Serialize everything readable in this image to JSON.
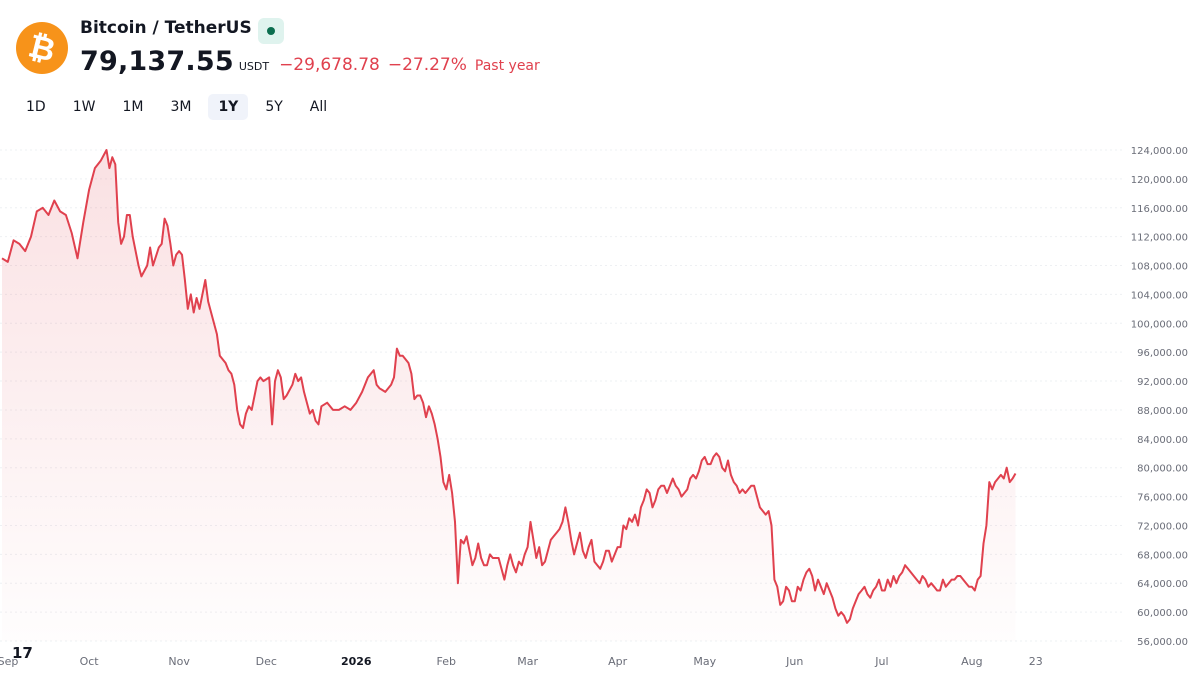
{
  "header": {
    "pair_title": "Bitcoin / TetherUS",
    "logo_glyph": "₿",
    "price": "79,137.55",
    "currency": "USDT",
    "change_abs": "−29,678.78",
    "change_pct": "−27.27%",
    "period_label": "Past year",
    "market_status": "open"
  },
  "ranges": [
    {
      "label": "1D",
      "active": false
    },
    {
      "label": "1W",
      "active": false
    },
    {
      "label": "1M",
      "active": false
    },
    {
      "label": "3M",
      "active": false
    },
    {
      "label": "1Y",
      "active": true
    },
    {
      "label": "5Y",
      "active": false
    },
    {
      "label": "All",
      "active": false
    }
  ],
  "branding": {
    "logo_text": "17"
  },
  "colors": {
    "line": "#e0414e",
    "logo": "#f7931a",
    "status": "#0b6e4f"
  },
  "chart_data": {
    "type": "area",
    "ylim": [
      56000,
      124000
    ],
    "y_ticks": [
      56000,
      60000,
      64000,
      68000,
      72000,
      76000,
      80000,
      84000,
      88000,
      92000,
      96000,
      100000,
      104000,
      108000,
      112000,
      116000,
      120000,
      124000
    ],
    "y_tick_labels": [
      "56,000.00",
      "60,000.00",
      "64,000.00",
      "68,000.00",
      "72,000.00",
      "76,000.00",
      "80,000.00",
      "84,000.00",
      "88,000.00",
      "92,000.00",
      "96,000.00",
      "100,000.00",
      "104,000.00",
      "108,000.00",
      "112,000.00",
      "116,000.00",
      "120,000.00",
      "124,000.00"
    ],
    "x_labels": [
      {
        "label": "Sep",
        "x": 0,
        "bold": false
      },
      {
        "label": "Oct",
        "x": 30,
        "bold": false
      },
      {
        "label": "Nov",
        "x": 61,
        "bold": false
      },
      {
        "label": "Dec",
        "x": 91,
        "bold": false
      },
      {
        "label": "2026",
        "x": 122,
        "bold": true
      },
      {
        "label": "Feb",
        "x": 153,
        "bold": false
      },
      {
        "label": "Mar",
        "x": 181,
        "bold": false
      },
      {
        "label": "Apr",
        "x": 212,
        "bold": false
      },
      {
        "label": "May",
        "x": 242,
        "bold": false
      },
      {
        "label": "Jun",
        "x": 273,
        "bold": false
      },
      {
        "label": "Jul",
        "x": 303,
        "bold": false
      },
      {
        "label": "Aug",
        "x": 334,
        "bold": false
      },
      {
        "label": "23",
        "x": 356,
        "bold": false
      }
    ],
    "x_range": [
      0,
      385
    ],
    "points": [
      [
        0,
        109000
      ],
      [
        2,
        108500
      ],
      [
        4,
        111500
      ],
      [
        6,
        111000
      ],
      [
        8,
        110000
      ],
      [
        10,
        112000
      ],
      [
        12,
        115500
      ],
      [
        14,
        116000
      ],
      [
        16,
        115000
      ],
      [
        18,
        117000
      ],
      [
        20,
        115500
      ],
      [
        22,
        115000
      ],
      [
        24,
        112500
      ],
      [
        26,
        109000
      ],
      [
        28,
        114000
      ],
      [
        30,
        118500
      ],
      [
        32,
        121500
      ],
      [
        34,
        122500
      ],
      [
        36,
        124000
      ],
      [
        37,
        121500
      ],
      [
        38,
        123000
      ],
      [
        39,
        122000
      ],
      [
        40,
        114000
      ],
      [
        41,
        111000
      ],
      [
        42,
        112000
      ],
      [
        43,
        115000
      ],
      [
        44,
        115000
      ],
      [
        45,
        112000
      ],
      [
        47,
        108000
      ],
      [
        48,
        106500
      ],
      [
        50,
        108000
      ],
      [
        51,
        110500
      ],
      [
        52,
        108000
      ],
      [
        54,
        110500
      ],
      [
        55,
        111000
      ],
      [
        56,
        114500
      ],
      [
        57,
        113500
      ],
      [
        58,
        111000
      ],
      [
        59,
        108000
      ],
      [
        60,
        109500
      ],
      [
        61,
        110000
      ],
      [
        62,
        109500
      ],
      [
        63,
        106000
      ],
      [
        64,
        102000
      ],
      [
        65,
        104000
      ],
      [
        66,
        101500
      ],
      [
        67,
        103500
      ],
      [
        68,
        102000
      ],
      [
        70,
        106000
      ],
      [
        71,
        103000
      ],
      [
        72,
        101500
      ],
      [
        74,
        98500
      ],
      [
        75,
        95500
      ],
      [
        76,
        95000
      ],
      [
        77,
        94500
      ],
      [
        78,
        93500
      ],
      [
        79,
        93000
      ],
      [
        80,
        91500
      ],
      [
        81,
        88000
      ],
      [
        82,
        86000
      ],
      [
        83,
        85500
      ],
      [
        84,
        87500
      ],
      [
        85,
        88500
      ],
      [
        86,
        88000
      ],
      [
        87,
        90000
      ],
      [
        88,
        92000
      ],
      [
        89,
        92500
      ],
      [
        90,
        92000
      ],
      [
        92,
        92500
      ],
      [
        93,
        86000
      ],
      [
        94,
        92000
      ],
      [
        95,
        93500
      ],
      [
        96,
        92500
      ],
      [
        97,
        89500
      ],
      [
        98,
        90000
      ],
      [
        100,
        91500
      ],
      [
        101,
        93000
      ],
      [
        102,
        92000
      ],
      [
        103,
        92500
      ],
      [
        104,
        90500
      ],
      [
        105,
        89000
      ],
      [
        106,
        87500
      ],
      [
        107,
        88000
      ],
      [
        108,
        86500
      ],
      [
        109,
        86000
      ],
      [
        110,
        88500
      ],
      [
        112,
        89000
      ],
      [
        114,
        88000
      ],
      [
        116,
        88000
      ],
      [
        118,
        88500
      ],
      [
        120,
        88000
      ],
      [
        122,
        89000
      ],
      [
        124,
        90500
      ],
      [
        126,
        92500
      ],
      [
        128,
        93500
      ],
      [
        129,
        91500
      ],
      [
        130,
        91000
      ],
      [
        132,
        90500
      ],
      [
        134,
        91500
      ],
      [
        135,
        92500
      ],
      [
        136,
        96500
      ],
      [
        137,
        95500
      ],
      [
        138,
        95500
      ],
      [
        140,
        94500
      ],
      [
        141,
        93000
      ],
      [
        142,
        89500
      ],
      [
        143,
        90000
      ],
      [
        144,
        90000
      ],
      [
        145,
        89000
      ],
      [
        146,
        87000
      ],
      [
        147,
        88500
      ],
      [
        148,
        87500
      ],
      [
        149,
        86000
      ],
      [
        150,
        84000
      ],
      [
        151,
        81500
      ],
      [
        152,
        78000
      ],
      [
        153,
        77000
      ],
      [
        154,
        79000
      ],
      [
        155,
        76500
      ],
      [
        156,
        72500
      ],
      [
        157,
        64000
      ],
      [
        158,
        70000
      ],
      [
        159,
        69500
      ],
      [
        160,
        70500
      ],
      [
        161,
        68500
      ],
      [
        162,
        66500
      ],
      [
        163,
        67500
      ],
      [
        164,
        69500
      ],
      [
        165,
        67500
      ],
      [
        166,
        66500
      ],
      [
        167,
        66500
      ],
      [
        168,
        68000
      ],
      [
        169,
        67500
      ],
      [
        171,
        67500
      ],
      [
        172,
        66000
      ],
      [
        173,
        64500
      ],
      [
        174,
        66500
      ],
      [
        175,
        68000
      ],
      [
        176,
        66500
      ],
      [
        177,
        65500
      ],
      [
        178,
        67000
      ],
      [
        179,
        66500
      ],
      [
        180,
        68000
      ],
      [
        181,
        69000
      ],
      [
        182,
        72500
      ],
      [
        183,
        70000
      ],
      [
        184,
        67500
      ],
      [
        185,
        69000
      ],
      [
        186,
        66500
      ],
      [
        187,
        67000
      ],
      [
        188,
        68500
      ],
      [
        189,
        70000
      ],
      [
        190,
        70500
      ],
      [
        191,
        71000
      ],
      [
        192,
        71500
      ],
      [
        193,
        72500
      ],
      [
        194,
        74500
      ],
      [
        195,
        72500
      ],
      [
        196,
        70000
      ],
      [
        197,
        68000
      ],
      [
        198,
        69500
      ],
      [
        199,
        71000
      ],
      [
        200,
        68500
      ],
      [
        201,
        67500
      ],
      [
        202,
        69000
      ],
      [
        203,
        70000
      ],
      [
        204,
        67000
      ],
      [
        205,
        66500
      ],
      [
        206,
        66000
      ],
      [
        207,
        67000
      ],
      [
        208,
        68500
      ],
      [
        209,
        68500
      ],
      [
        210,
        67000
      ],
      [
        211,
        68000
      ],
      [
        212,
        69000
      ],
      [
        213,
        69000
      ],
      [
        214,
        72000
      ],
      [
        215,
        71500
      ],
      [
        216,
        73000
      ],
      [
        217,
        72500
      ],
      [
        218,
        73500
      ],
      [
        219,
        72000
      ],
      [
        220,
        74500
      ],
      [
        221,
        75500
      ],
      [
        222,
        77000
      ],
      [
        223,
        76500
      ],
      [
        224,
        74500
      ],
      [
        225,
        75500
      ],
      [
        226,
        77000
      ],
      [
        227,
        77500
      ],
      [
        228,
        77500
      ],
      [
        229,
        76500
      ],
      [
        230,
        77500
      ],
      [
        231,
        78500
      ],
      [
        232,
        77500
      ],
      [
        233,
        77000
      ],
      [
        234,
        76000
      ],
      [
        235,
        76500
      ],
      [
        236,
        77000
      ],
      [
        237,
        78500
      ],
      [
        238,
        79000
      ],
      [
        239,
        78500
      ],
      [
        240,
        79500
      ],
      [
        241,
        81000
      ],
      [
        242,
        81500
      ],
      [
        243,
        80500
      ],
      [
        244,
        80500
      ],
      [
        245,
        81500
      ],
      [
        246,
        82000
      ],
      [
        247,
        81500
      ],
      [
        248,
        80000
      ],
      [
        249,
        79500
      ],
      [
        250,
        81000
      ],
      [
        251,
        79000
      ],
      [
        252,
        78000
      ],
      [
        253,
        77500
      ],
      [
        254,
        76500
      ],
      [
        255,
        77000
      ],
      [
        256,
        76500
      ],
      [
        257,
        77000
      ],
      [
        258,
        77500
      ],
      [
        259,
        77500
      ],
      [
        260,
        76000
      ],
      [
        261,
        74500
      ],
      [
        262,
        74000
      ],
      [
        263,
        73500
      ],
      [
        264,
        74000
      ],
      [
        265,
        72000
      ],
      [
        266,
        64500
      ],
      [
        267,
        63500
      ],
      [
        268,
        61000
      ],
      [
        269,
        61500
      ],
      [
        270,
        63500
      ],
      [
        271,
        63000
      ],
      [
        272,
        61500
      ],
      [
        273,
        61500
      ],
      [
        274,
        63500
      ],
      [
        275,
        63000
      ],
      [
        276,
        64500
      ],
      [
        277,
        65500
      ],
      [
        278,
        66000
      ],
      [
        279,
        65000
      ],
      [
        280,
        63000
      ],
      [
        281,
        64500
      ],
      [
        282,
        63500
      ],
      [
        283,
        62500
      ],
      [
        284,
        64000
      ],
      [
        285,
        63000
      ],
      [
        286,
        62000
      ],
      [
        287,
        60500
      ],
      [
        288,
        59500
      ],
      [
        289,
        60000
      ],
      [
        290,
        59500
      ],
      [
        291,
        58500
      ],
      [
        292,
        59000
      ],
      [
        293,
        60500
      ],
      [
        294,
        61500
      ],
      [
        295,
        62500
      ],
      [
        296,
        63000
      ],
      [
        297,
        63500
      ],
      [
        298,
        62500
      ],
      [
        299,
        62000
      ],
      [
        300,
        63000
      ],
      [
        301,
        63500
      ],
      [
        302,
        64500
      ],
      [
        303,
        63000
      ],
      [
        304,
        63000
      ],
      [
        305,
        64500
      ],
      [
        306,
        63500
      ],
      [
        307,
        65000
      ],
      [
        308,
        64000
      ],
      [
        309,
        65000
      ],
      [
        310,
        65500
      ],
      [
        311,
        66500
      ],
      [
        312,
        66000
      ],
      [
        313,
        65500
      ],
      [
        314,
        65000
      ],
      [
        315,
        64500
      ],
      [
        316,
        64000
      ],
      [
        317,
        65000
      ],
      [
        318,
        64500
      ],
      [
        319,
        63500
      ],
      [
        320,
        64000
      ],
      [
        321,
        63500
      ],
      [
        322,
        63000
      ],
      [
        323,
        63000
      ],
      [
        324,
        64500
      ],
      [
        325,
        63500
      ],
      [
        326,
        64000
      ],
      [
        327,
        64500
      ],
      [
        328,
        64500
      ],
      [
        329,
        65000
      ],
      [
        330,
        65000
      ],
      [
        331,
        64500
      ],
      [
        332,
        64000
      ],
      [
        333,
        63500
      ],
      [
        334,
        63500
      ],
      [
        335,
        63000
      ],
      [
        336,
        64500
      ],
      [
        337,
        65000
      ],
      [
        338,
        69500
      ],
      [
        339,
        72000
      ],
      [
        340,
        78000
      ],
      [
        341,
        77000
      ],
      [
        342,
        78000
      ],
      [
        343,
        78500
      ],
      [
        344,
        79000
      ],
      [
        345,
        78500
      ],
      [
        346,
        80000
      ],
      [
        347,
        78000
      ],
      [
        348,
        78500
      ],
      [
        349,
        79200
      ]
    ]
  }
}
